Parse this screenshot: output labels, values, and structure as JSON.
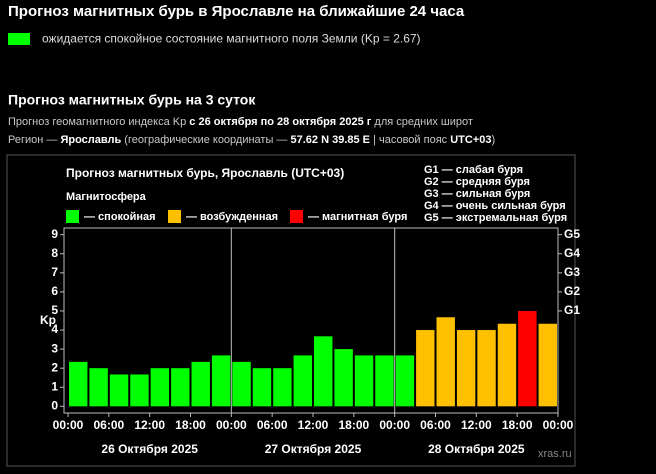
{
  "header": {
    "title": "Прогноз магнитных бурь в Ярославле на ближайшие 24 часа",
    "status": {
      "text": "ожидается спокойное состояние магнитного поля Земли (Kp = 2.67)",
      "color": "#00ff00"
    }
  },
  "section": {
    "title": "Прогноз магнитных бурь на 3 суток",
    "lines": [
      [
        {
          "text": "Прогноз геомагнитного индекса Kp ",
          "bold": false
        },
        {
          "text": "с 26 октября по 28 октября 2025 г",
          "bold": true
        },
        {
          "text": " для средних широт",
          "bold": false
        }
      ],
      [
        {
          "text": "Регион — ",
          "bold": false
        },
        {
          "text": "Ярославль",
          "bold": true
        },
        {
          "text": " (географические координаты — ",
          "bold": false
        },
        {
          "text": "57.62 N 39.85 E",
          "bold": true
        },
        {
          "text": " | часовой пояс ",
          "bold": false
        },
        {
          "text": "UTC+03",
          "bold": true
        },
        {
          "text": ")",
          "bold": false
        }
      ]
    ]
  },
  "chart_data": {
    "type": "bar",
    "title": "Прогноз магнитных бурь, Ярославль (UTC+03)",
    "legend_title": "Магнитосфера",
    "legend": [
      {
        "name": "— спокойная",
        "color": "#00ff00"
      },
      {
        "name": "— возбужденная",
        "color": "#ffc000"
      },
      {
        "name": "— магнитная буря",
        "color": "#ff0000"
      }
    ],
    "g_scale": [
      "G1 — слабая буря",
      "G2 — средняя буря",
      "G3 — сильная буря",
      "G4 — очень сильная буря",
      "G5 — экстремальная буря"
    ],
    "ylabel": "Kp",
    "x": [
      0,
      3,
      6,
      9,
      12,
      15,
      18,
      21,
      24,
      27,
      30,
      33,
      36,
      39,
      42,
      45,
      48,
      51,
      54,
      57,
      60,
      63,
      66,
      69
    ],
    "values": [
      2.33,
      2,
      1.67,
      1.67,
      2,
      2,
      2.33,
      2.67,
      2.33,
      2,
      2,
      2.67,
      3.67,
      3,
      2.67,
      2.67,
      2.67,
      4,
      4.67,
      4,
      4,
      4.33,
      5,
      4.33
    ],
    "colors": [
      "#00ff00",
      "#00ff00",
      "#00ff00",
      "#00ff00",
      "#00ff00",
      "#00ff00",
      "#00ff00",
      "#00ff00",
      "#00ff00",
      "#00ff00",
      "#00ff00",
      "#00ff00",
      "#00ff00",
      "#00ff00",
      "#00ff00",
      "#00ff00",
      "#00ff00",
      "#ffc000",
      "#ffc000",
      "#ffc000",
      "#ffc000",
      "#ffc000",
      "#ff0000",
      "#ffc000"
    ],
    "bar_width": 3,
    "xlim": [
      0,
      72
    ],
    "xticks": [
      {
        "value": 0,
        "label": "00:00"
      },
      {
        "value": 6,
        "label": "06:00"
      },
      {
        "value": 12,
        "label": "12:00"
      },
      {
        "value": 18,
        "label": "18:00"
      },
      {
        "value": 24,
        "label": "00:00"
      },
      {
        "value": 30,
        "label": "06:00"
      },
      {
        "value": 36,
        "label": "12:00"
      },
      {
        "value": 42,
        "label": "18:00"
      },
      {
        "value": 48,
        "label": "00:00"
      },
      {
        "value": 54,
        "label": "06:00"
      },
      {
        "value": 60,
        "label": "12:00"
      },
      {
        "value": 66,
        "label": "18:00"
      },
      {
        "value": 72,
        "label": "00:00"
      }
    ],
    "days": [
      "26 Октября 2025",
      "27 Октября 2025",
      "28 Октября 2025"
    ],
    "ylim": [
      -0.35,
      9.35
    ],
    "yticks": [
      0,
      1,
      2,
      3,
      4,
      5,
      6,
      7,
      8,
      9
    ],
    "y2lim": [
      -0.35,
      9.35
    ],
    "y2ticks": [
      {
        "value": 5,
        "label": "G1"
      },
      {
        "value": 6,
        "label": "G2"
      },
      {
        "value": 7,
        "label": "G3"
      },
      {
        "value": 8,
        "label": "G4"
      },
      {
        "value": 9,
        "label": "G5"
      }
    ],
    "watermark": "xras.ru"
  }
}
